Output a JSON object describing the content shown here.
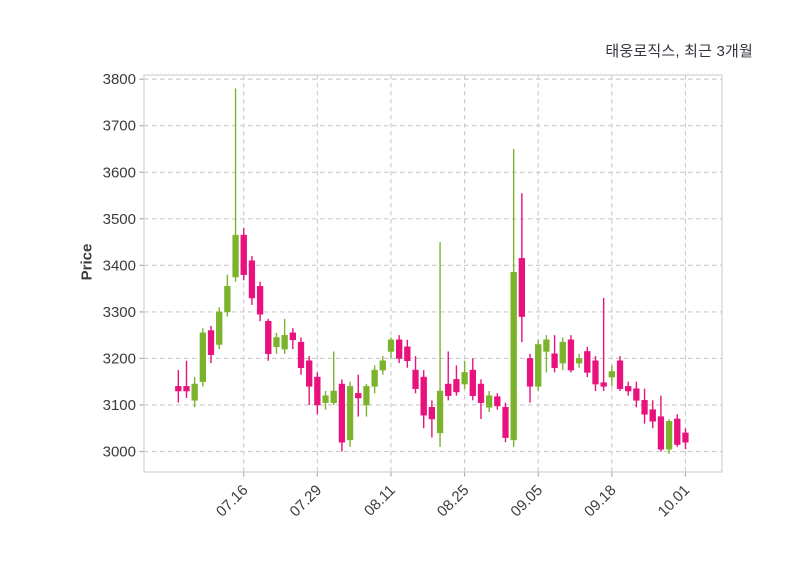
{
  "chart_data": {
    "type": "candlestick",
    "title": "태웅로직스, 최근 3개월",
    "ylabel": "Price",
    "xlabel": "",
    "grid": true,
    "ylim": [
      2956,
      3809
    ],
    "yticks": [
      3000,
      3100,
      3200,
      3300,
      3400,
      3500,
      3600,
      3700,
      3800
    ],
    "xticks": [
      {
        "index": 8,
        "label": "07.16"
      },
      {
        "index": 17,
        "label": "07.29"
      },
      {
        "index": 26,
        "label": "08.11"
      },
      {
        "index": 35,
        "label": "08.25"
      },
      {
        "index": 44,
        "label": "09.05"
      },
      {
        "index": 53,
        "label": "09.18"
      },
      {
        "index": 62,
        "label": "10.01"
      }
    ],
    "up_color": "#7cb32d",
    "down_color": "#e8117d",
    "candles_ohlc": [
      [
        3140,
        3175,
        3105,
        3130
      ],
      [
        3140,
        3195,
        3115,
        3130
      ],
      [
        3110,
        3160,
        3095,
        3145
      ],
      [
        3150,
        3265,
        3140,
        3255
      ],
      [
        3260,
        3270,
        3190,
        3208
      ],
      [
        3230,
        3310,
        3220,
        3300
      ],
      [
        3300,
        3380,
        3290,
        3355
      ],
      [
        3375,
        3780,
        3365,
        3465
      ],
      [
        3465,
        3480,
        3368,
        3380
      ],
      [
        3410,
        3420,
        3315,
        3330
      ],
      [
        3355,
        3365,
        3280,
        3295
      ],
      [
        3280,
        3285,
        3195,
        3210
      ],
      [
        3225,
        3255,
        3210,
        3245
      ],
      [
        3220,
        3285,
        3210,
        3250
      ],
      [
        3255,
        3265,
        3220,
        3240
      ],
      [
        3235,
        3245,
        3165,
        3180
      ],
      [
        3195,
        3205,
        3100,
        3140
      ],
      [
        3160,
        3170,
        3080,
        3100
      ],
      [
        3105,
        3130,
        3090,
        3120
      ],
      [
        3105,
        3215,
        3100,
        3130
      ],
      [
        3145,
        3155,
        3000,
        3020
      ],
      [
        3025,
        3150,
        3010,
        3140
      ],
      [
        3125,
        3165,
        3075,
        3115
      ],
      [
        3100,
        3145,
        3075,
        3140
      ],
      [
        3140,
        3185,
        3125,
        3175
      ],
      [
        3175,
        3205,
        3165,
        3195
      ],
      [
        3215,
        3245,
        3200,
        3240
      ],
      [
        3240,
        3250,
        3190,
        3200
      ],
      [
        3225,
        3240,
        3180,
        3195
      ],
      [
        3175,
        3205,
        3125,
        3135
      ],
      [
        3160,
        3175,
        3050,
        3078
      ],
      [
        3095,
        3110,
        3030,
        3070
      ],
      [
        3040,
        3450,
        3010,
        3130
      ],
      [
        3145,
        3215,
        3110,
        3120
      ],
      [
        3155,
        3185,
        3120,
        3128
      ],
      [
        3145,
        3195,
        3135,
        3170
      ],
      [
        3175,
        3200,
        3110,
        3120
      ],
      [
        3145,
        3155,
        3070,
        3105
      ],
      [
        3095,
        3130,
        3085,
        3120
      ],
      [
        3118,
        3125,
        3090,
        3098
      ],
      [
        3095,
        3105,
        3020,
        3030
      ],
      [
        3025,
        3650,
        3010,
        3385
      ],
      [
        3415,
        3555,
        3235,
        3290
      ],
      [
        3200,
        3210,
        3105,
        3140
      ],
      [
        3140,
        3240,
        3130,
        3230
      ],
      [
        3215,
        3250,
        3170,
        3240
      ],
      [
        3210,
        3250,
        3170,
        3180
      ],
      [
        3190,
        3245,
        3175,
        3235
      ],
      [
        3240,
        3250,
        3170,
        3175
      ],
      [
        3190,
        3210,
        3180,
        3200
      ],
      [
        3215,
        3225,
        3160,
        3170
      ],
      [
        3195,
        3205,
        3130,
        3145
      ],
      [
        3148,
        3330,
        3130,
        3140
      ],
      [
        3160,
        3185,
        3140,
        3172
      ],
      [
        3195,
        3205,
        3130,
        3135
      ],
      [
        3140,
        3150,
        3120,
        3130
      ],
      [
        3135,
        3150,
        3095,
        3110
      ],
      [
        3110,
        3135,
        3060,
        3080
      ],
      [
        3090,
        3110,
        3050,
        3065
      ],
      [
        3075,
        3120,
        3000,
        3005
      ],
      [
        3005,
        3070,
        2995,
        3065
      ],
      [
        3070,
        3080,
        3010,
        3015
      ],
      [
        3040,
        3050,
        3005,
        3020
      ]
    ]
  },
  "style": {
    "background": "#ffffff",
    "grid_color": "#cacaca",
    "border_color": "#d2d2d2",
    "tick_mark_color": "#aeaeae",
    "tick_label_color": "#3c3c3c",
    "title_color": "#33343d"
  }
}
